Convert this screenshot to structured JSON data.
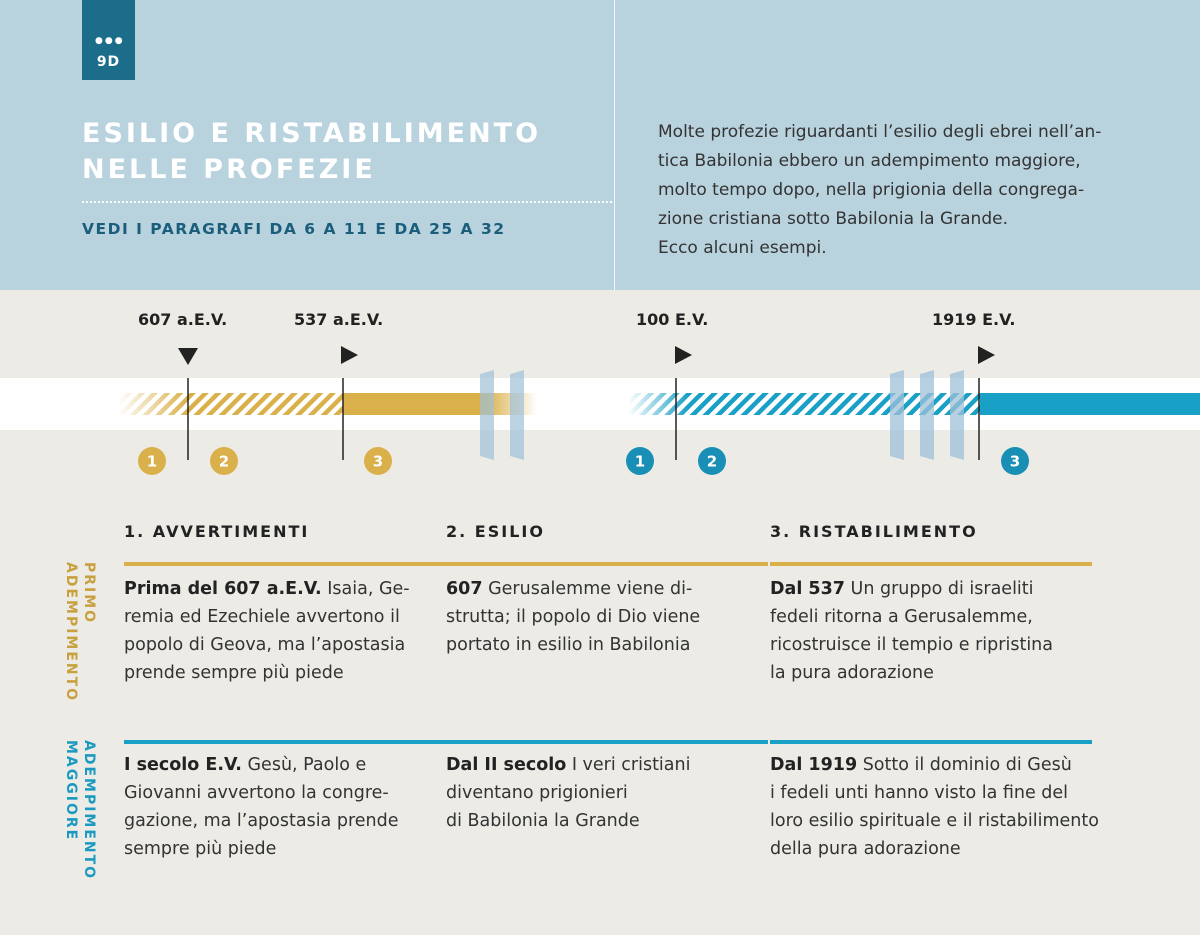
{
  "header": {
    "badge": "9D",
    "title_lines": [
      "ESILIO E RISTABILIMENTO",
      "NELLE PROFEZIE"
    ],
    "subtitle": "VEDI I PARAGRAFI DA 6 A 11 E DA 25 A 32",
    "intro_lines": [
      "Molte profezie riguardanti l’esilio degli ebrei nell’an-",
      "tica Babilonia ebbero un adempimento maggiore,",
      "molto tempo dopo, nella prigionia della congrega-",
      "zione cristiana sotto Babilonia la Grande.",
      "Ecco alcuni esempi."
    ]
  },
  "timeline": {
    "dates": [
      "607 a.E.V.",
      "537 a.E.V.",
      "100 E.V.",
      "1919 E.V."
    ],
    "markers": [
      "1",
      "2",
      "3",
      "1",
      "2",
      "3"
    ]
  },
  "columns": [
    "1. AVVERTIMENTI",
    "2. ESILIO",
    "3. RISTABILIMENTO"
  ],
  "rows": {
    "primo": {
      "label_lines": [
        "PRIMO",
        "ADEMPIMENTO"
      ],
      "cells": [
        {
          "lead": "Prima del 607 a.E.V.",
          "lines": [
            " Isaia, Ge-",
            "remia ed Ezechiele avvertono il",
            "popolo di Geova, ma l’apostasia",
            "prende sempre più piede"
          ]
        },
        {
          "lead": "607",
          "lines": [
            " Gerusalemme viene di-",
            "strutta; il popolo di Dio viene",
            "portato in esilio in Babilonia"
          ]
        },
        {
          "lead": "Dal 537",
          "lines": [
            " Un gruppo di israeliti",
            "fedeli ritorna a Gerusalemme,",
            "ricostruisce il tempio e ripristina",
            "la pura adorazione"
          ]
        }
      ]
    },
    "maggiore": {
      "label_lines": [
        "ADEMPIMENTO",
        "MAGGIORE"
      ],
      "cells": [
        {
          "lead": "I secolo E.V.",
          "lines": [
            " Gesù, Paolo e",
            "Giovanni avvertono la congre-",
            "gazione, ma l’apostasia prende",
            "sempre più piede"
          ]
        },
        {
          "lead": "Dal II secolo",
          "lines": [
            " I veri cristiani",
            "diventano prigionieri",
            "di Babilonia la Grande"
          ]
        },
        {
          "lead": "Dal 1919",
          "lines": [
            " Sotto il dominio di Gesù",
            "i fedeli unti hanno visto la fine del",
            "loro esilio spirituale e il ristabilimento",
            "della pura adorazione"
          ]
        }
      ]
    }
  },
  "colors": {
    "gold": "#d9b04a",
    "blue": "#18a0c6",
    "header_bg": "#b8d2de",
    "badge": "#1b6d8a",
    "page_bg": "#ecebe6"
  }
}
